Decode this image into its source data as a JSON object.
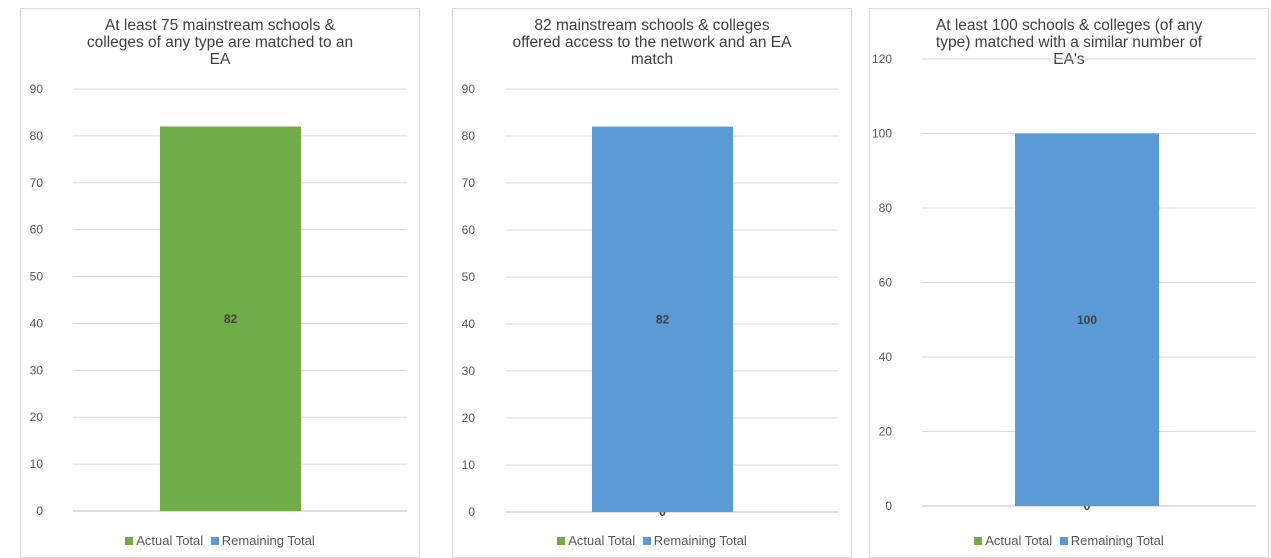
{
  "chart_data": [
    {
      "type": "bar",
      "stacked": true,
      "title": "At least 75 mainstream schools & colleges of any type are matched to an EA",
      "title_lines": [
        "At least 75 mainstream schools &",
        "colleges of any type are matched to an",
        "EA"
      ],
      "categories": [
        ""
      ],
      "ylim": [
        0,
        90
      ],
      "yticks": [
        0,
        10,
        20,
        30,
        40,
        50,
        60,
        70,
        80,
        90
      ],
      "grid": true,
      "legend_position": "bottom",
      "series": [
        {
          "name": "Actual Total",
          "values": [
            82
          ],
          "color": "#70ad47",
          "value_labels": [
            "82"
          ]
        },
        {
          "name": "Remaining Total",
          "values": [
            0
          ],
          "color": "#5b9bd5",
          "value_labels": [
            ""
          ]
        }
      ]
    },
    {
      "type": "bar",
      "stacked": true,
      "title": "82 mainstream schools & colleges offered access to the network and an EA match",
      "title_lines": [
        "82 mainstream schools & colleges",
        "offered access to the network and an EA",
        "match"
      ],
      "categories": [
        ""
      ],
      "ylim": [
        0,
        90
      ],
      "yticks": [
        0,
        10,
        20,
        30,
        40,
        50,
        60,
        70,
        80,
        90
      ],
      "grid": true,
      "legend_position": "bottom",
      "series": [
        {
          "name": "Actual Total",
          "values": [
            0
          ],
          "color": "#70ad47",
          "value_labels": [
            "0"
          ]
        },
        {
          "name": "Remaining Total",
          "values": [
            82
          ],
          "color": "#5b9bd5",
          "value_labels": [
            "82"
          ]
        }
      ]
    },
    {
      "type": "bar",
      "stacked": true,
      "title": "At least 100 schools & colleges (of any type) matched with a similar number of EA's",
      "title_lines": [
        "At least 100 schools & colleges (of any",
        "type) matched with a similar number of",
        "EA's"
      ],
      "categories": [
        ""
      ],
      "ylim": [
        0,
        120
      ],
      "yticks": [
        0,
        20,
        40,
        60,
        80,
        100,
        120
      ],
      "grid": true,
      "legend_position": "bottom",
      "series": [
        {
          "name": "Actual Total",
          "values": [
            0
          ],
          "color": "#70ad47",
          "value_labels": [
            "0"
          ]
        },
        {
          "name": "Remaining Total",
          "values": [
            100
          ],
          "color": "#5b9bd5",
          "value_labels": [
            "100"
          ]
        }
      ]
    }
  ]
}
